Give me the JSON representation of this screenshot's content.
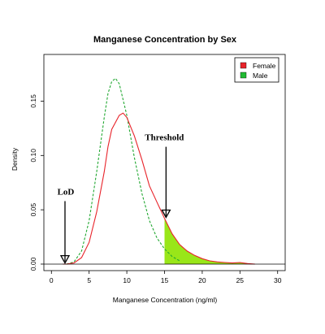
{
  "chart_data": {
    "type": "line",
    "title": "Manganese Concentration by Sex",
    "xlabel": "Manganese Concentration (ng/ml)",
    "ylabel": "Density",
    "xlim": [
      -1,
      31
    ],
    "ylim": [
      -0.006,
      0.193
    ],
    "x_ticks": [
      0,
      5,
      10,
      15,
      20,
      25,
      30
    ],
    "y_ticks": [
      0.0,
      0.05,
      0.1,
      0.15
    ],
    "y_tick_labels": [
      "0.00",
      "0.05",
      "0.10",
      "0.15"
    ],
    "grid": false,
    "legend_position": "top-right",
    "series": [
      {
        "name": "Female",
        "line_color": "#e8232a",
        "fill_color": "#e8232a",
        "line_style": "solid",
        "x": [
          1.5,
          2,
          3,
          4,
          5,
          6,
          7,
          7.5,
          8,
          9,
          9.5,
          10,
          11,
          12,
          13,
          14,
          15,
          16,
          17,
          18,
          19,
          20,
          21,
          22,
          23,
          24,
          25,
          26,
          27
        ],
        "y": [
          0.0,
          0.0,
          0.001,
          0.006,
          0.02,
          0.048,
          0.085,
          0.108,
          0.124,
          0.137,
          0.139,
          0.135,
          0.118,
          0.096,
          0.072,
          0.057,
          0.042,
          0.028,
          0.018,
          0.012,
          0.008,
          0.005,
          0.003,
          0.002,
          0.0015,
          0.001,
          0.0015,
          0.0005,
          0.0
        ]
      },
      {
        "name": "Male",
        "line_color": "#22a832",
        "fill_color": "#22bb33",
        "line_style": "dashed",
        "x": [
          2,
          3,
          4,
          5,
          6,
          7,
          7.5,
          8,
          8.5,
          9,
          10,
          11,
          12,
          13,
          14,
          15,
          16,
          17
        ],
        "y": [
          0.0,
          0.002,
          0.012,
          0.04,
          0.085,
          0.135,
          0.157,
          0.168,
          0.171,
          0.166,
          0.137,
          0.098,
          0.065,
          0.04,
          0.024,
          0.014,
          0.007,
          0.003
        ]
      }
    ],
    "shaded_region": {
      "x_from": 15,
      "x_to": 27,
      "under": "Female",
      "color": "#99e619"
    },
    "annotations": [
      {
        "text": "LoD",
        "x": 1.8,
        "arrow_tip_y": 0.001,
        "arrow_top_y": 0.058
      },
      {
        "text": "Threshold",
        "x": 15.2,
        "arrow_tip_y": 0.043,
        "arrow_top_y": 0.108
      }
    ]
  }
}
